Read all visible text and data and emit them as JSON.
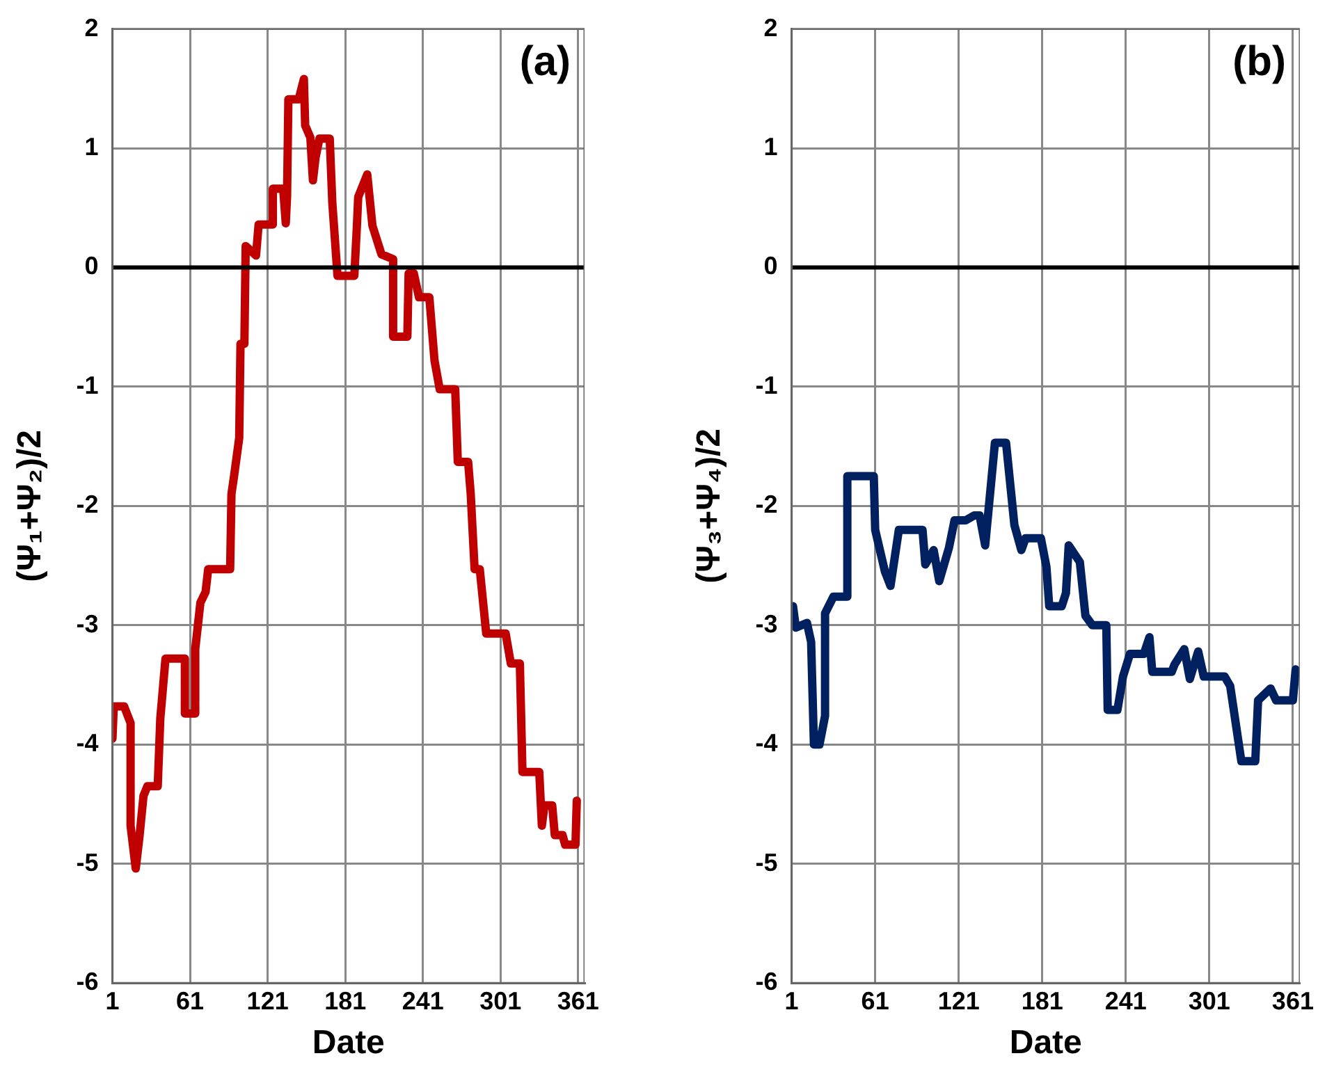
{
  "chart_data": [
    {
      "type": "line",
      "xlabel": "Date",
      "ylabel": "(Ψ₁+Ψ₂)/2",
      "annotations": [
        "(a)"
      ],
      "xlim": [
        1,
        366
      ],
      "ylim": [
        -6,
        2
      ],
      "xticks": [
        1,
        61,
        121,
        181,
        241,
        301,
        361
      ],
      "yticks": [
        -6,
        -5,
        -4,
        -3,
        -2,
        -1,
        0,
        1,
        2
      ],
      "grid": true,
      "legend": false,
      "marker": "none",
      "line_style": "solid",
      "ref_lines": [
        {
          "axis": "y",
          "value": 0,
          "color": "#000000"
        }
      ],
      "series": [
        {
          "color": "#c00000",
          "x": [
            1,
            2,
            10,
            15,
            15,
            19,
            22,
            25,
            28,
            36,
            38,
            42,
            57,
            57,
            65,
            65,
            69,
            73,
            75,
            92,
            93,
            95,
            99,
            100,
            103,
            104,
            112,
            114,
            125,
            125,
            133,
            135,
            136,
            137,
            145,
            149,
            150,
            154,
            156,
            158,
            161,
            169,
            171,
            175,
            188,
            190,
            191,
            198,
            202,
            209,
            218,
            218,
            229,
            230,
            234,
            238,
            246,
            250,
            254,
            266,
            268,
            276,
            278,
            281,
            285,
            290,
            305,
            309,
            316,
            318,
            331,
            333,
            335,
            341,
            343,
            349,
            351,
            359,
            360
          ],
          "values": [
            -3.95,
            -3.68,
            -3.68,
            -3.82,
            -4.68,
            -5.04,
            -4.76,
            -4.43,
            -4.35,
            -4.35,
            -3.78,
            -3.28,
            -3.28,
            -3.74,
            -3.74,
            -3.2,
            -2.81,
            -2.72,
            -2.53,
            -2.53,
            -1.9,
            -1.75,
            -1.43,
            -0.64,
            -0.64,
            0.18,
            0.1,
            0.36,
            0.36,
            0.66,
            0.66,
            0.37,
            0.6,
            1.41,
            1.41,
            1.58,
            1.19,
            1.09,
            0.73,
            0.92,
            1.08,
            1.08,
            0.54,
            -0.07,
            -0.07,
            0.35,
            0.59,
            0.78,
            0.35,
            0.11,
            0.07,
            -0.58,
            -0.58,
            -0.05,
            -0.05,
            -0.25,
            -0.25,
            -0.78,
            -1.02,
            -1.02,
            -1.63,
            -1.63,
            -1.9,
            -2.53,
            -2.53,
            -3.07,
            -3.07,
            -3.32,
            -3.32,
            -4.23,
            -4.23,
            -4.68,
            -4.51,
            -4.51,
            -4.76,
            -4.76,
            -4.84,
            -4.84,
            -4.47
          ]
        }
      ]
    },
    {
      "type": "line",
      "xlabel": "Date",
      "ylabel": "(Ψ₃+Ψ₄)/2",
      "annotations": [
        "(b)"
      ],
      "xlim": [
        1,
        366
      ],
      "ylim": [
        -6,
        2
      ],
      "xticks": [
        1,
        61,
        121,
        181,
        241,
        301,
        361
      ],
      "yticks": [
        -6,
        -5,
        -4,
        -3,
        -2,
        -1,
        0,
        1,
        2
      ],
      "grid": true,
      "legend": false,
      "marker": "none",
      "line_style": "solid",
      "ref_lines": [
        {
          "axis": "y",
          "value": 0,
          "color": "#000000"
        }
      ],
      "series": [
        {
          "color": "#002060",
          "x": [
            2,
            4,
            12,
            15,
            17,
            21,
            25,
            25,
            31,
            41,
            41,
            60,
            61,
            68,
            72,
            78,
            95,
            97,
            103,
            107,
            114,
            118,
            126,
            132,
            136,
            140,
            147,
            155,
            161,
            166,
            169,
            180,
            184,
            186,
            195,
            198,
            200,
            208,
            212,
            217,
            227,
            228,
            235,
            239,
            244,
            254,
            258,
            260,
            274,
            276,
            283,
            287,
            293,
            297,
            312,
            316,
            324,
            334,
            336,
            345,
            349,
            361,
            363
          ],
          "values": [
            -2.84,
            -3.02,
            -2.98,
            -3.14,
            -4,
            -4,
            -3.76,
            -2.9,
            -2.76,
            -2.76,
            -1.75,
            -1.75,
            -2.2,
            -2.55,
            -2.67,
            -2.2,
            -2.2,
            -2.49,
            -2.37,
            -2.63,
            -2.35,
            -2.12,
            -2.12,
            -2.08,
            -2.08,
            -2.33,
            -1.47,
            -1.47,
            -2.16,
            -2.37,
            -2.27,
            -2.27,
            -2.51,
            -2.84,
            -2.84,
            -2.73,
            -2.33,
            -2.47,
            -2.92,
            -3,
            -3,
            -3.71,
            -3.71,
            -3.43,
            -3.24,
            -3.24,
            -3.1,
            -3.39,
            -3.39,
            -3.33,
            -3.2,
            -3.45,
            -3.22,
            -3.43,
            -3.43,
            -3.51,
            -4.14,
            -4.14,
            -3.63,
            -3.53,
            -3.63,
            -3.63,
            -3.37
          ]
        }
      ]
    }
  ]
}
